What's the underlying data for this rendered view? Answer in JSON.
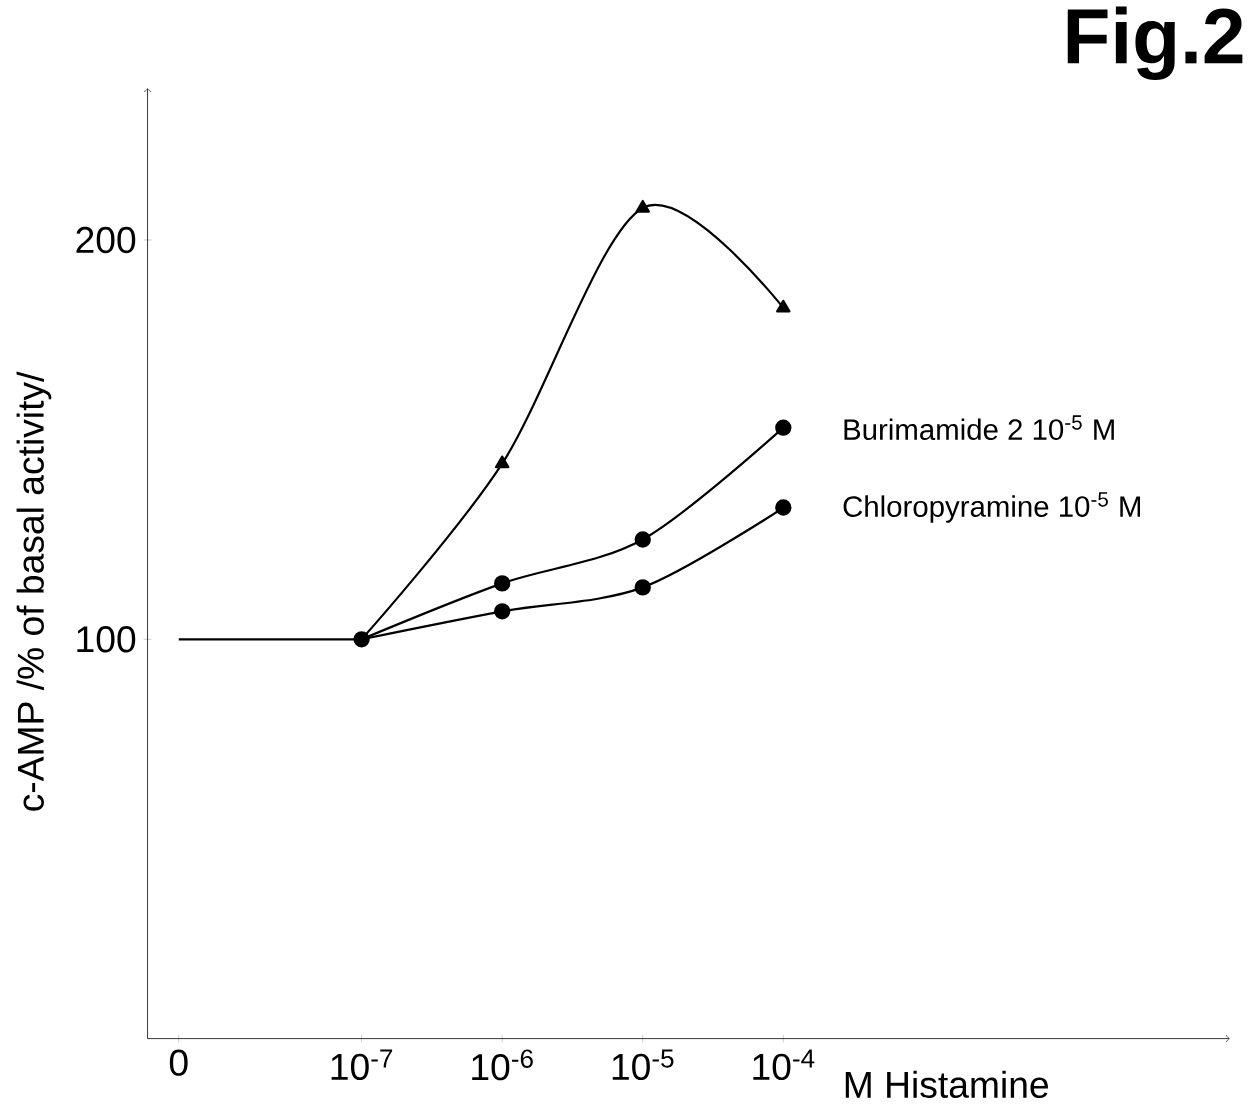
{
  "chart_data": {
    "type": "line",
    "title": "Fig.2",
    "xlabel": "M  Histamine",
    "ylabel": "c-AMP /% of basal activity/",
    "log": "x",
    "xlim": [
      3e-09,
      0.15
    ],
    "ylim": [
      0,
      238
    ],
    "xticks": [
      {
        "value": 5e-09,
        "label": "0"
      },
      {
        "value": 1e-07,
        "label": "10$^{-7}$"
      },
      {
        "value": 1e-06,
        "label": "10$^{-6}$"
      },
      {
        "value": 1e-05,
        "label": "10$^{-5}$"
      },
      {
        "value": 0.0001,
        "label": "10$^{-4}$"
      }
    ],
    "yticks": [
      100,
      200
    ],
    "series": [
      {
        "color": "#000000",
        "x": [
          5e-09,
          1e-07
        ],
        "values": [
          100,
          100
        ]
      },
      {
        "color": "#000000",
        "marker": "triangle",
        "x": [
          1e-07,
          1e-06,
          1e-05,
          0.0001
        ],
        "values": [
          100,
          144,
          208,
          183
        ]
      },
      {
        "name": "Burimamide 2 10$^{-5}$ M",
        "color": "#000000",
        "marker": "circle",
        "x": [
          1e-07,
          1e-06,
          1e-05,
          0.0001
        ],
        "values": [
          100,
          114,
          125,
          153
        ]
      },
      {
        "name": "Chloropyramine 10$^{-5}$ M",
        "color": "#000000",
        "marker": "circle",
        "x": [
          1e-07,
          1e-06,
          1e-05,
          0.0001
        ],
        "values": [
          100,
          107,
          113,
          133
        ]
      }
    ]
  }
}
